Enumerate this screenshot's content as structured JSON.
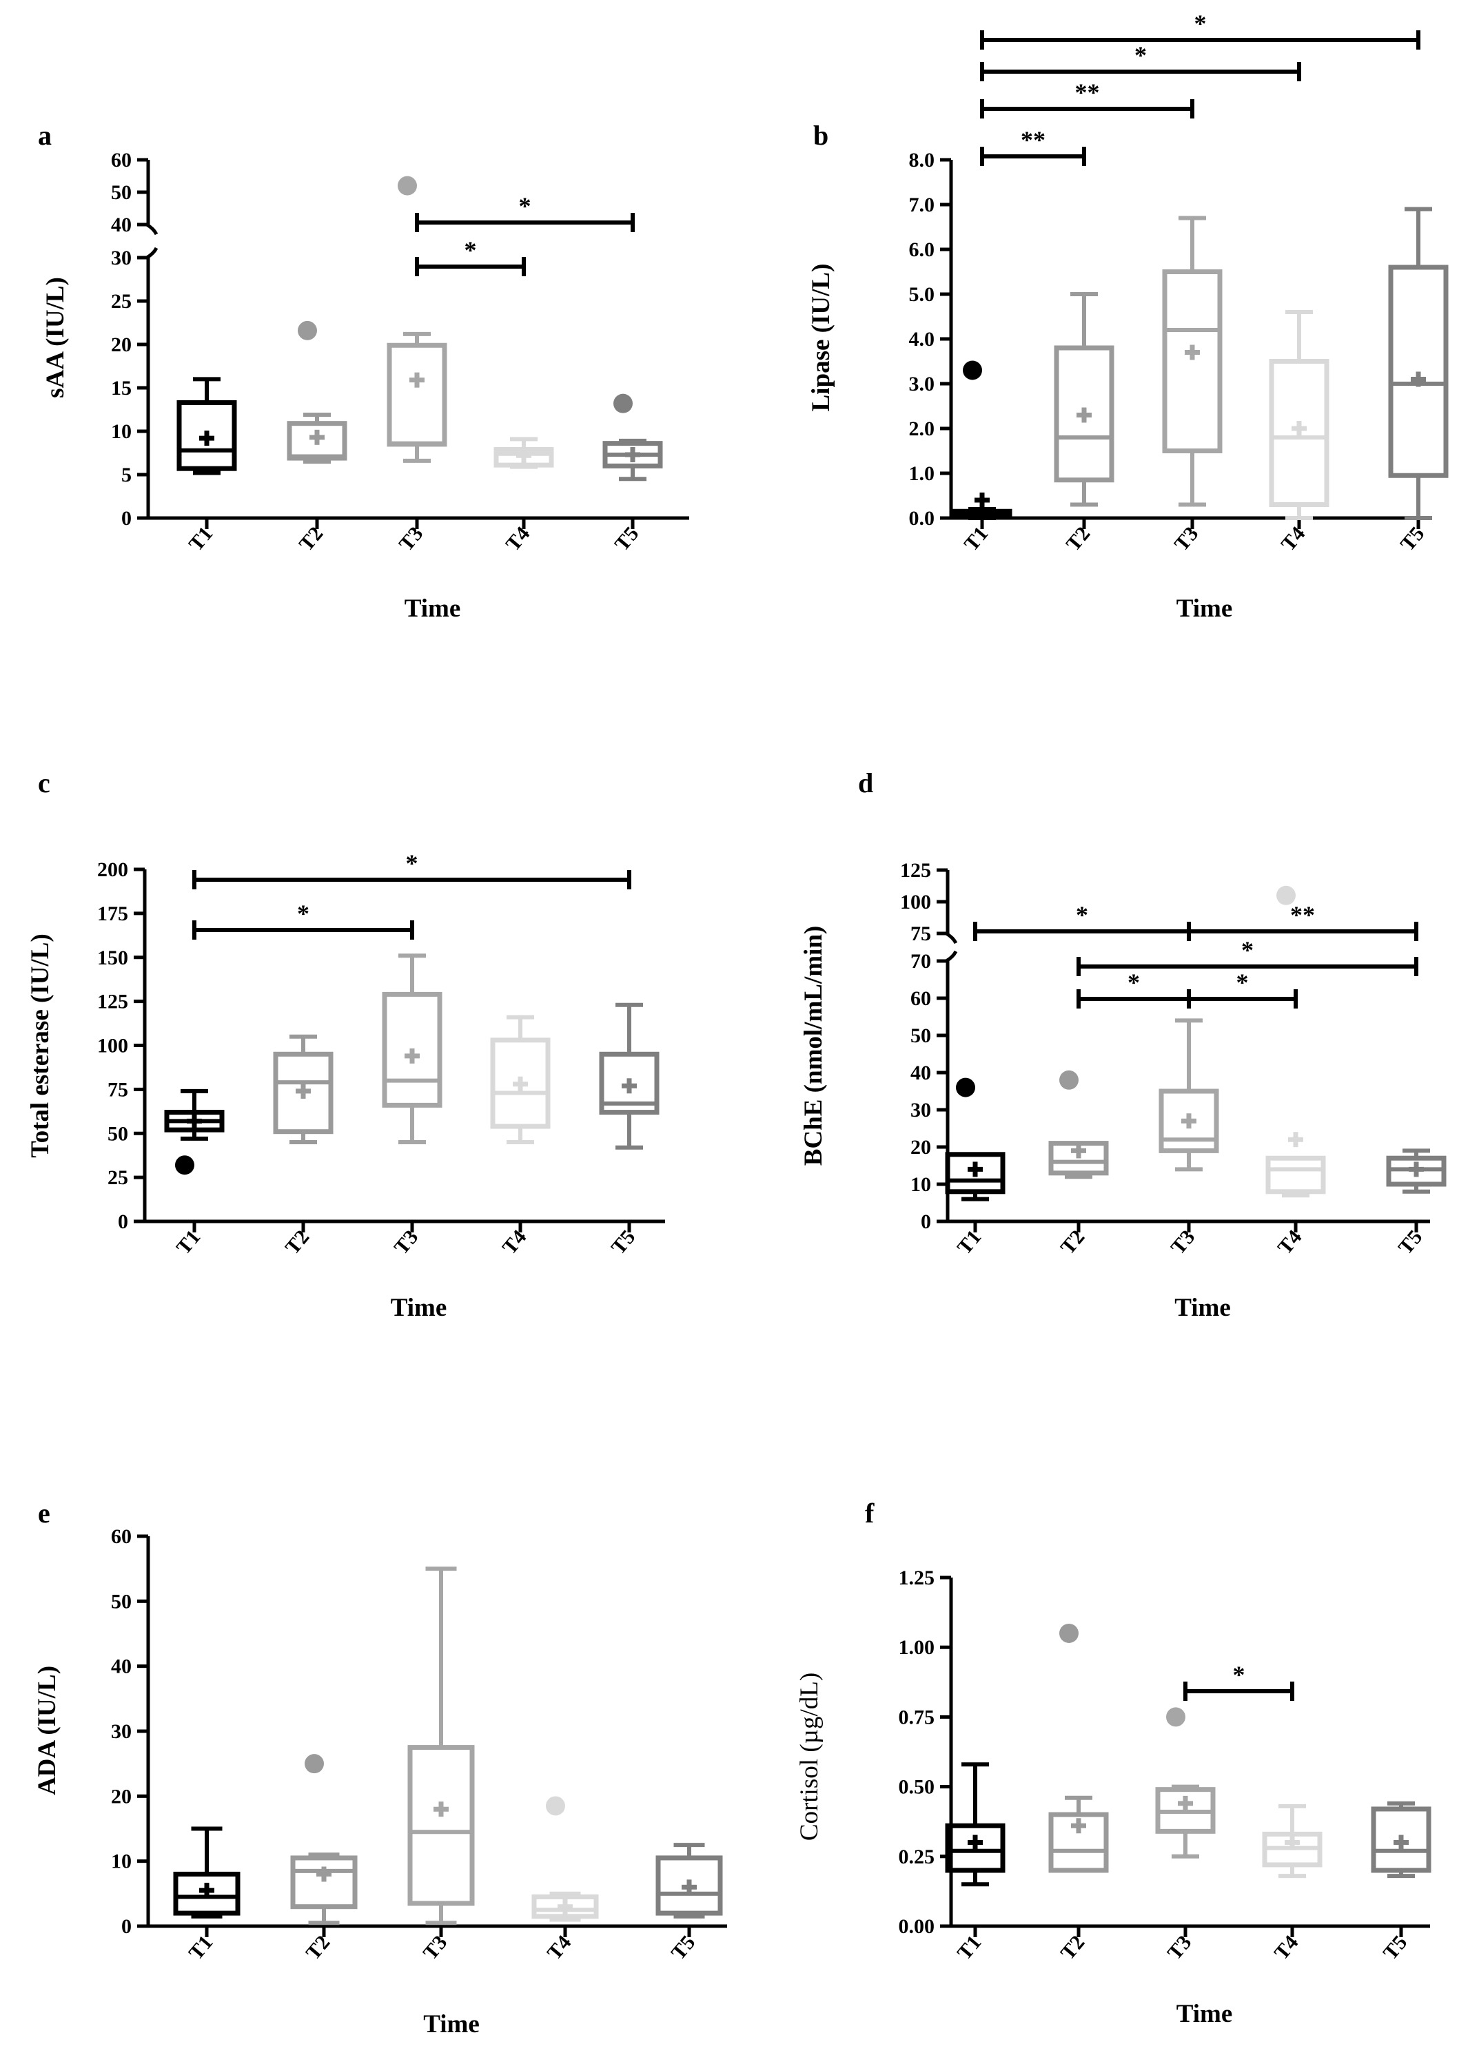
{
  "chart_data": [
    {
      "panel": "a",
      "type": "box",
      "ylabel": "sAA (IU/L)",
      "xlabel": "Time",
      "categories": [
        "T1",
        "T2",
        "T3",
        "T4",
        "T5"
      ],
      "y_break": {
        "lower_range": [
          0,
          30
        ],
        "upper_range": [
          40,
          60
        ]
      },
      "yticks_lower": [
        0,
        5,
        10,
        15,
        20,
        25,
        30
      ],
      "yticks_upper": [
        40,
        50,
        60
      ],
      "boxes": [
        {
          "min": 5.2,
          "q1": 5.7,
          "median": 7.8,
          "q3": 13.3,
          "max": 16.0,
          "mean": 9.2,
          "outliers": []
        },
        {
          "min": 6.5,
          "q1": 6.9,
          "median": 7.1,
          "q3": 10.9,
          "max": 11.9,
          "mean": 9.3,
          "outliers": [
            21.6
          ]
        },
        {
          "min": 6.6,
          "q1": 8.5,
          "median": 8.6,
          "q3": 19.9,
          "max": 21.2,
          "mean": 15.9,
          "outliers": [
            52
          ]
        },
        {
          "min": 5.9,
          "q1": 6.1,
          "median": 7.4,
          "q3": 7.9,
          "max": 9.1,
          "mean": 7.2,
          "outliers": []
        },
        {
          "min": 4.5,
          "q1": 6.0,
          "median": 7.3,
          "q3": 8.6,
          "max": 8.9,
          "mean": 7.3,
          "outliers": [
            13.2
          ]
        }
      ],
      "significance": [
        {
          "from": "T3",
          "to": "T5",
          "label": "*"
        },
        {
          "from": "T3",
          "to": "T4",
          "label": "*"
        }
      ]
    },
    {
      "panel": "b",
      "type": "box",
      "ylabel": "Lipase (IU/L)",
      "xlabel": "Time",
      "categories": [
        "T1",
        "T2",
        "T3",
        "T4",
        "T5"
      ],
      "ylim": [
        0,
        8
      ],
      "yticks": [
        "0.0",
        "1.0",
        "2.0",
        "3.0",
        "4.0",
        "5.0",
        "6.0",
        "7.0",
        "8.0"
      ],
      "boxes": [
        {
          "min": 0.0,
          "q1": 0.03,
          "median": 0.1,
          "q3": 0.15,
          "max": 0.2,
          "mean": 0.4,
          "outliers": [
            3.3
          ]
        },
        {
          "min": 0.3,
          "q1": 0.85,
          "median": 1.8,
          "q3": 3.8,
          "max": 5.0,
          "mean": 2.3,
          "outliers": []
        },
        {
          "min": 0.3,
          "q1": 1.5,
          "median": 4.2,
          "q3": 5.5,
          "max": 6.7,
          "mean": 3.7,
          "outliers": []
        },
        {
          "min": 0.0,
          "q1": 0.3,
          "median": 1.8,
          "q3": 3.5,
          "max": 4.6,
          "mean": 2.0,
          "outliers": []
        },
        {
          "min": 0.0,
          "q1": 0.95,
          "median": 3.0,
          "q3": 5.6,
          "max": 6.9,
          "mean": 3.1,
          "outliers": []
        }
      ],
      "significance": [
        {
          "from": "T1",
          "to": "T5",
          "label": "*"
        },
        {
          "from": "T1",
          "to": "T4",
          "label": "*"
        },
        {
          "from": "T1",
          "to": "T3",
          "label": "**"
        },
        {
          "from": "T1",
          "to": "T2",
          "label": "**"
        }
      ]
    },
    {
      "panel": "c",
      "type": "box",
      "ylabel": "Total esterase (IU/L)",
      "xlabel": "Time",
      "categories": [
        "T1",
        "T2",
        "T3",
        "T4",
        "T5"
      ],
      "ylim": [
        0,
        200
      ],
      "yticks": [
        "0",
        "25",
        "50",
        "75",
        "100",
        "125",
        "150",
        "175",
        "200"
      ],
      "boxes": [
        {
          "min": 47,
          "q1": 52,
          "median": 57,
          "q3": 62,
          "max": 74,
          "mean": 57,
          "outliers": [
            32
          ]
        },
        {
          "min": 45,
          "q1": 51,
          "median": 79,
          "q3": 95,
          "max": 105,
          "mean": 74,
          "outliers": []
        },
        {
          "min": 45,
          "q1": 66,
          "median": 80,
          "q3": 129,
          "max": 151,
          "mean": 94,
          "outliers": []
        },
        {
          "min": 45,
          "q1": 54,
          "median": 73,
          "q3": 103,
          "max": 116,
          "mean": 78,
          "outliers": []
        },
        {
          "min": 42,
          "q1": 62,
          "median": 67,
          "q3": 95,
          "max": 123,
          "mean": 77,
          "outliers": []
        }
      ],
      "significance": [
        {
          "from": "T1",
          "to": "T5",
          "label": "*"
        },
        {
          "from": "T1",
          "to": "T3",
          "label": "*"
        }
      ]
    },
    {
      "panel": "d",
      "type": "box",
      "ylabel": "BChE (nmol/mL/min)",
      "xlabel": "Time",
      "categories": [
        "T1",
        "T2",
        "T3",
        "T4",
        "T5"
      ],
      "y_break": {
        "lower_range": [
          0,
          70
        ],
        "upper_range": [
          75,
          125
        ]
      },
      "yticks_lower": [
        0,
        10,
        20,
        30,
        40,
        50,
        60,
        70
      ],
      "yticks_upper": [
        75,
        100,
        125
      ],
      "boxes": [
        {
          "min": 6,
          "q1": 8,
          "median": 11,
          "q3": 18,
          "max": 18,
          "mean": 14,
          "outliers": [
            36
          ]
        },
        {
          "min": 12,
          "q1": 13,
          "median": 16,
          "q3": 21,
          "max": 21,
          "mean": 19,
          "outliers": [
            38
          ]
        },
        {
          "min": 14,
          "q1": 19,
          "median": 22,
          "q3": 35,
          "max": 54,
          "mean": 27,
          "outliers": []
        },
        {
          "min": 7,
          "q1": 8,
          "median": 14,
          "q3": 17,
          "max": 17,
          "mean": 22,
          "outliers": [
            105
          ]
        },
        {
          "min": 8,
          "q1": 10,
          "median": 14,
          "q3": 17,
          "max": 19,
          "mean": 14,
          "outliers": []
        }
      ],
      "significance": [
        {
          "from": "T1",
          "to": "T3",
          "label": "*"
        },
        {
          "from": "T3",
          "to": "T5",
          "label": "**"
        },
        {
          "from": "T2",
          "to": "T5",
          "label": "*"
        },
        {
          "from": "T2",
          "to": "T3",
          "label": "*"
        },
        {
          "from": "T3",
          "to": "T4",
          "label": "*"
        }
      ]
    },
    {
      "panel": "e",
      "type": "box",
      "ylabel": "ADA (IU/L)",
      "xlabel": "Time",
      "categories": [
        "T1",
        "T2",
        "T3",
        "T4",
        "T5"
      ],
      "ylim": [
        0,
        60
      ],
      "yticks": [
        "0",
        "10",
        "20",
        "30",
        "40",
        "50",
        "60"
      ],
      "boxes": [
        {
          "min": 1.5,
          "q1": 2,
          "median": 4.5,
          "q3": 8,
          "max": 15,
          "mean": 5.5,
          "outliers": []
        },
        {
          "min": 0.5,
          "q1": 3,
          "median": 8.5,
          "q3": 10.5,
          "max": 11,
          "mean": 8,
          "outliers": [
            25
          ]
        },
        {
          "min": 0.5,
          "q1": 3.5,
          "median": 14.5,
          "q3": 27.5,
          "max": 55,
          "mean": 18,
          "outliers": []
        },
        {
          "min": 1,
          "q1": 1.5,
          "median": 2.5,
          "q3": 4.5,
          "max": 5,
          "mean": 3,
          "outliers": [
            18.5
          ]
        },
        {
          "min": 1.5,
          "q1": 2,
          "median": 5,
          "q3": 10.5,
          "max": 12.5,
          "mean": 6,
          "outliers": []
        }
      ],
      "significance": []
    },
    {
      "panel": "f",
      "type": "box",
      "ylabel": "Cortisol (µg/dL)",
      "xlabel": "Time",
      "categories": [
        "T1",
        "T2",
        "T3",
        "T4",
        "T5"
      ],
      "ylim": [
        0,
        1.25
      ],
      "yticks": [
        "0.00",
        "0.25",
        "0.50",
        "0.75",
        "1.00",
        "1.25"
      ],
      "boxes": [
        {
          "min": 0.15,
          "q1": 0.2,
          "median": 0.27,
          "q3": 0.36,
          "max": 0.58,
          "mean": 0.3,
          "outliers": []
        },
        {
          "min": 0.2,
          "q1": 0.2,
          "median": 0.27,
          "q3": 0.4,
          "max": 0.46,
          "mean": 0.36,
          "outliers": [
            1.05
          ]
        },
        {
          "min": 0.25,
          "q1": 0.34,
          "median": 0.41,
          "q3": 0.49,
          "max": 0.5,
          "mean": 0.44,
          "outliers": [
            0.75
          ]
        },
        {
          "min": 0.18,
          "q1": 0.22,
          "median": 0.28,
          "q3": 0.33,
          "max": 0.43,
          "mean": 0.3,
          "outliers": []
        },
        {
          "min": 0.18,
          "q1": 0.2,
          "median": 0.27,
          "q3": 0.42,
          "max": 0.44,
          "mean": 0.3,
          "outliers": []
        }
      ],
      "significance": [
        {
          "from": "T3",
          "to": "T4",
          "label": "*"
        }
      ]
    }
  ],
  "colors": {
    "T1": "#000000",
    "T2": "#9a9a9a",
    "T3": "#a6a6a6",
    "T4": "#d9d9d9",
    "T5": "#7f7f7f"
  }
}
